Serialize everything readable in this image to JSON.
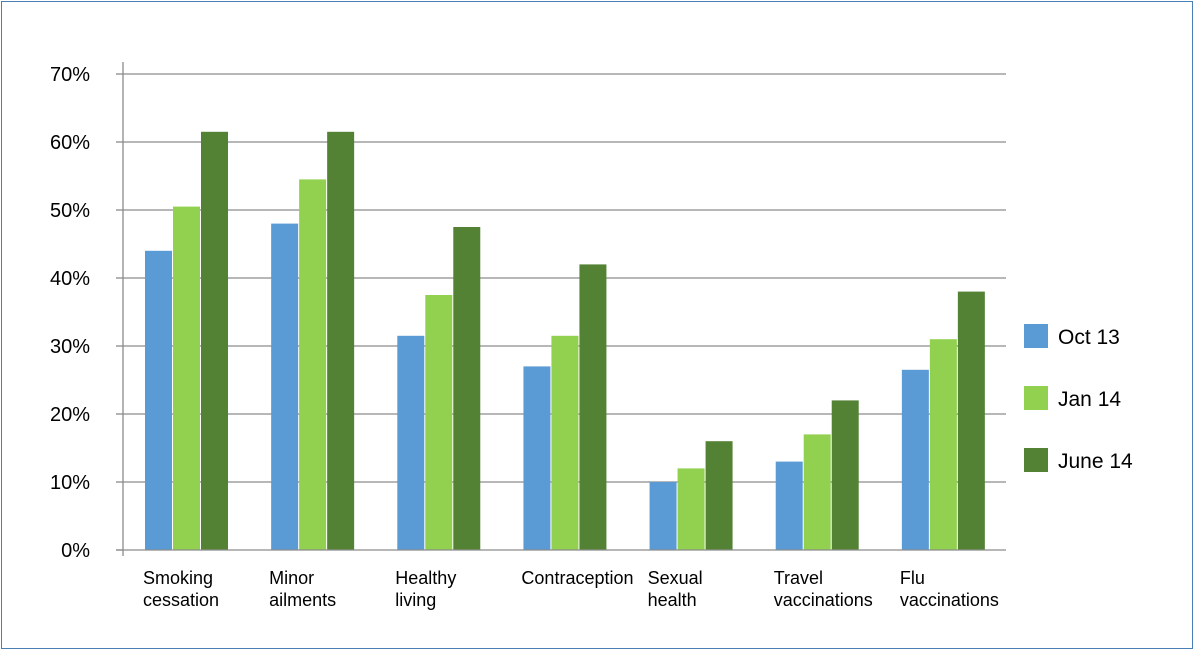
{
  "chart_data": {
    "type": "bar",
    "categories": [
      [
        "Smoking",
        "cessation"
      ],
      [
        "Minor",
        "ailments"
      ],
      [
        "Healthy",
        "living"
      ],
      [
        "Contraception"
      ],
      [
        "Sexual",
        "health"
      ],
      [
        "Travel",
        "vaccinations"
      ],
      [
        "Flu",
        "vaccinations"
      ]
    ],
    "series": [
      {
        "name": "Oct 13",
        "color": "#5b9bd5",
        "values": [
          44,
          48,
          31.5,
          27,
          10,
          13,
          26.5
        ]
      },
      {
        "name": "Jan 14",
        "color": "#92d050",
        "values": [
          50.5,
          54.5,
          37.5,
          31.5,
          12,
          17,
          31
        ]
      },
      {
        "name": "June 14",
        "color": "#548235",
        "values": [
          61.5,
          61.5,
          47.5,
          42,
          16,
          22,
          38
        ]
      }
    ],
    "ylim": [
      0,
      70
    ],
    "yticks": [
      0,
      10,
      20,
      30,
      40,
      50,
      60,
      70
    ],
    "ytick_labels": [
      "0%",
      "10%",
      "20%",
      "30%",
      "40%",
      "50%",
      "60%",
      "70%"
    ],
    "grid": true,
    "legend_position": "right",
    "title": "",
    "xlabel": "",
    "ylabel": ""
  }
}
